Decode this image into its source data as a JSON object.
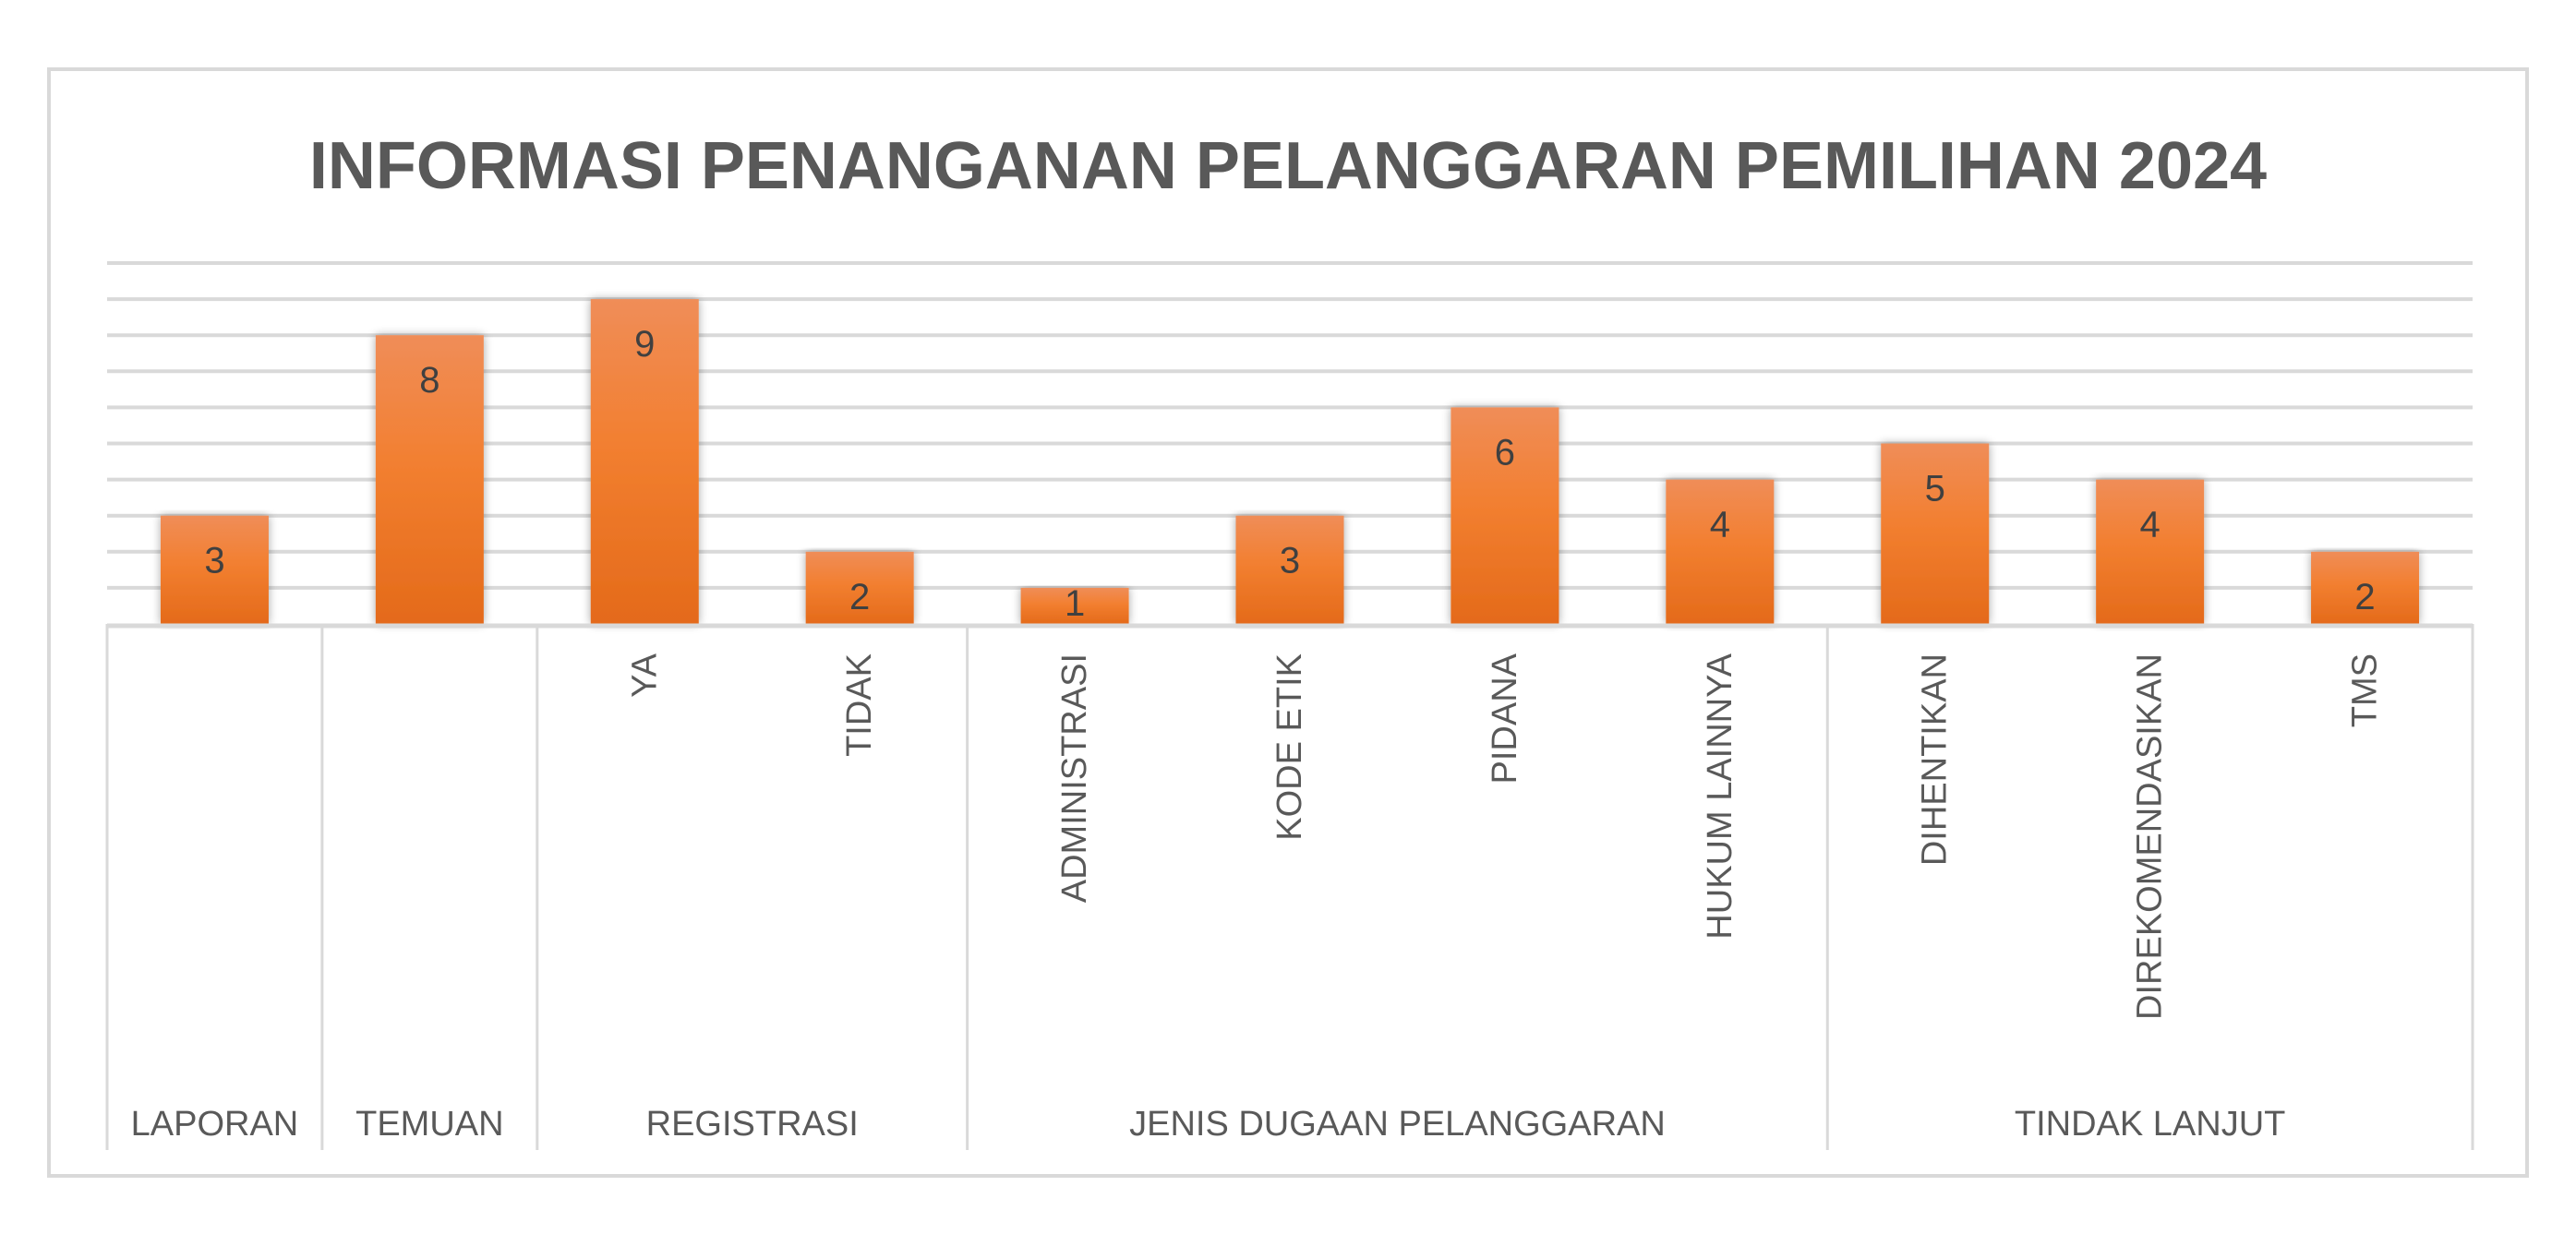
{
  "chart_data": {
    "type": "bar",
    "title": "INFORMASI PENANGANAN PELANGGARAN PEMILIHAN 2024",
    "xlabel": "",
    "ylabel": "",
    "ylim": [
      0,
      10
    ],
    "grid": true,
    "legend": "none",
    "groups": [
      {
        "label": "LAPORAN",
        "items": [
          {
            "label": "",
            "value": 3
          }
        ]
      },
      {
        "label": "TEMUAN",
        "items": [
          {
            "label": "",
            "value": 8
          }
        ]
      },
      {
        "label": "REGISTRASI",
        "items": [
          {
            "label": "YA",
            "value": 9
          },
          {
            "label": "TIDAK",
            "value": 2
          }
        ]
      },
      {
        "label": "JENIS DUGAAN PELANGGARAN",
        "items": [
          {
            "label": "ADMINISTRASI",
            "value": 1
          },
          {
            "label": "KODE ETIK",
            "value": 3
          },
          {
            "label": "PIDANA",
            "value": 6
          },
          {
            "label": "HUKUM LAINNYA",
            "value": 4
          }
        ]
      },
      {
        "label": "TINDAK LANJUT",
        "items": [
          {
            "label": "DIHENTIKAN",
            "value": 5
          },
          {
            "label": "DIREKOMENDASIKAN",
            "value": 4
          },
          {
            "label": "TMS",
            "value": 2
          }
        ]
      }
    ],
    "bar_color_top": "#F08D58",
    "bar_color_bottom": "#E46A1A"
  }
}
